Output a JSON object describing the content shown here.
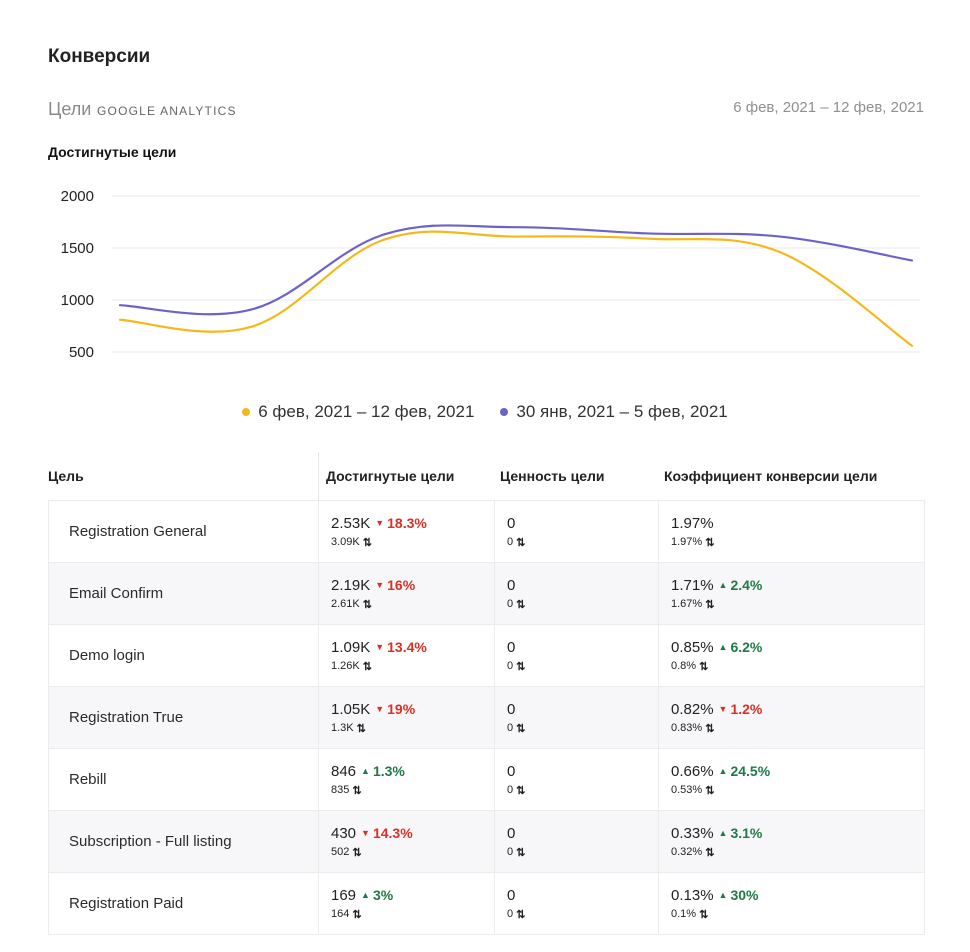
{
  "header": {
    "title": "Конверсии",
    "goals_label": "Цели",
    "source_label": "GOOGLE ANALYTICS",
    "date_range": "6 фев, 2021 – 12 фев, 2021"
  },
  "chart_data": {
    "type": "line",
    "title": "Достигнутые цели",
    "x": [
      1,
      2,
      3,
      4,
      5,
      6,
      7
    ],
    "ylim": [
      500,
      2000
    ],
    "yticks": [
      "2000",
      "1500",
      "1000",
      "500"
    ],
    "grid": true,
    "legend_position": "bottom-center",
    "series": [
      {
        "name": "6 фев, 2021 – 12 фев, 2021",
        "color": "#f5b81b",
        "values": [
          810,
          745,
          1580,
          1610,
          1590,
          1460,
          560
        ]
      },
      {
        "name": "30 янв, 2021 – 5 фев, 2021",
        "color": "#6c63c9",
        "values": [
          950,
          910,
          1630,
          1700,
          1640,
          1610,
          1380
        ]
      }
    ]
  },
  "table": {
    "headers": [
      "Цель",
      "Достигнутые цели",
      "Ценность цели",
      "Коэффициент конверсии цели"
    ],
    "rows": [
      {
        "goal": "Registration General",
        "reached": "2.53K",
        "reached_delta": "18.3%",
        "reached_dir": "down",
        "reached_prev": "3.09K",
        "value": "0",
        "value_prev": "0",
        "rate": "1.97%",
        "rate_delta": "",
        "rate_dir": "",
        "rate_prev": "1.97%"
      },
      {
        "goal": "Email Confirm",
        "reached": "2.19K",
        "reached_delta": "16%",
        "reached_dir": "down",
        "reached_prev": "2.61K",
        "value": "0",
        "value_prev": "0",
        "rate": "1.71%",
        "rate_delta": "2.4%",
        "rate_dir": "up",
        "rate_prev": "1.67%"
      },
      {
        "goal": "Demo login",
        "reached": "1.09K",
        "reached_delta": "13.4%",
        "reached_dir": "down",
        "reached_prev": "1.26K",
        "value": "0",
        "value_prev": "0",
        "rate": "0.85%",
        "rate_delta": "6.2%",
        "rate_dir": "up",
        "rate_prev": "0.8%"
      },
      {
        "goal": "Registration True",
        "reached": "1.05K",
        "reached_delta": "19%",
        "reached_dir": "down",
        "reached_prev": "1.3K",
        "value": "0",
        "value_prev": "0",
        "rate": "0.82%",
        "rate_delta": "1.2%",
        "rate_dir": "down",
        "rate_prev": "0.83%"
      },
      {
        "goal": "Rebill",
        "reached": "846",
        "reached_delta": "1.3%",
        "reached_dir": "up",
        "reached_prev": "835",
        "value": "0",
        "value_prev": "0",
        "rate": "0.66%",
        "rate_delta": "24.5%",
        "rate_dir": "up",
        "rate_prev": "0.53%"
      },
      {
        "goal": "Subscription - Full listing",
        "reached": "430",
        "reached_delta": "14.3%",
        "reached_dir": "down",
        "reached_prev": "502",
        "value": "0",
        "value_prev": "0",
        "rate": "0.33%",
        "rate_delta": "3.1%",
        "rate_dir": "up",
        "rate_prev": "0.32%"
      },
      {
        "goal": "Registration Paid",
        "reached": "169",
        "reached_delta": "3%",
        "reached_dir": "up",
        "reached_prev": "164",
        "value": "0",
        "value_prev": "0",
        "rate": "0.13%",
        "rate_delta": "30%",
        "rate_dir": "up",
        "rate_prev": "0.1%"
      }
    ]
  },
  "icons": {
    "swap": "swap-vertical-icon",
    "up": "triangle-up-icon",
    "down": "triangle-down-icon"
  }
}
